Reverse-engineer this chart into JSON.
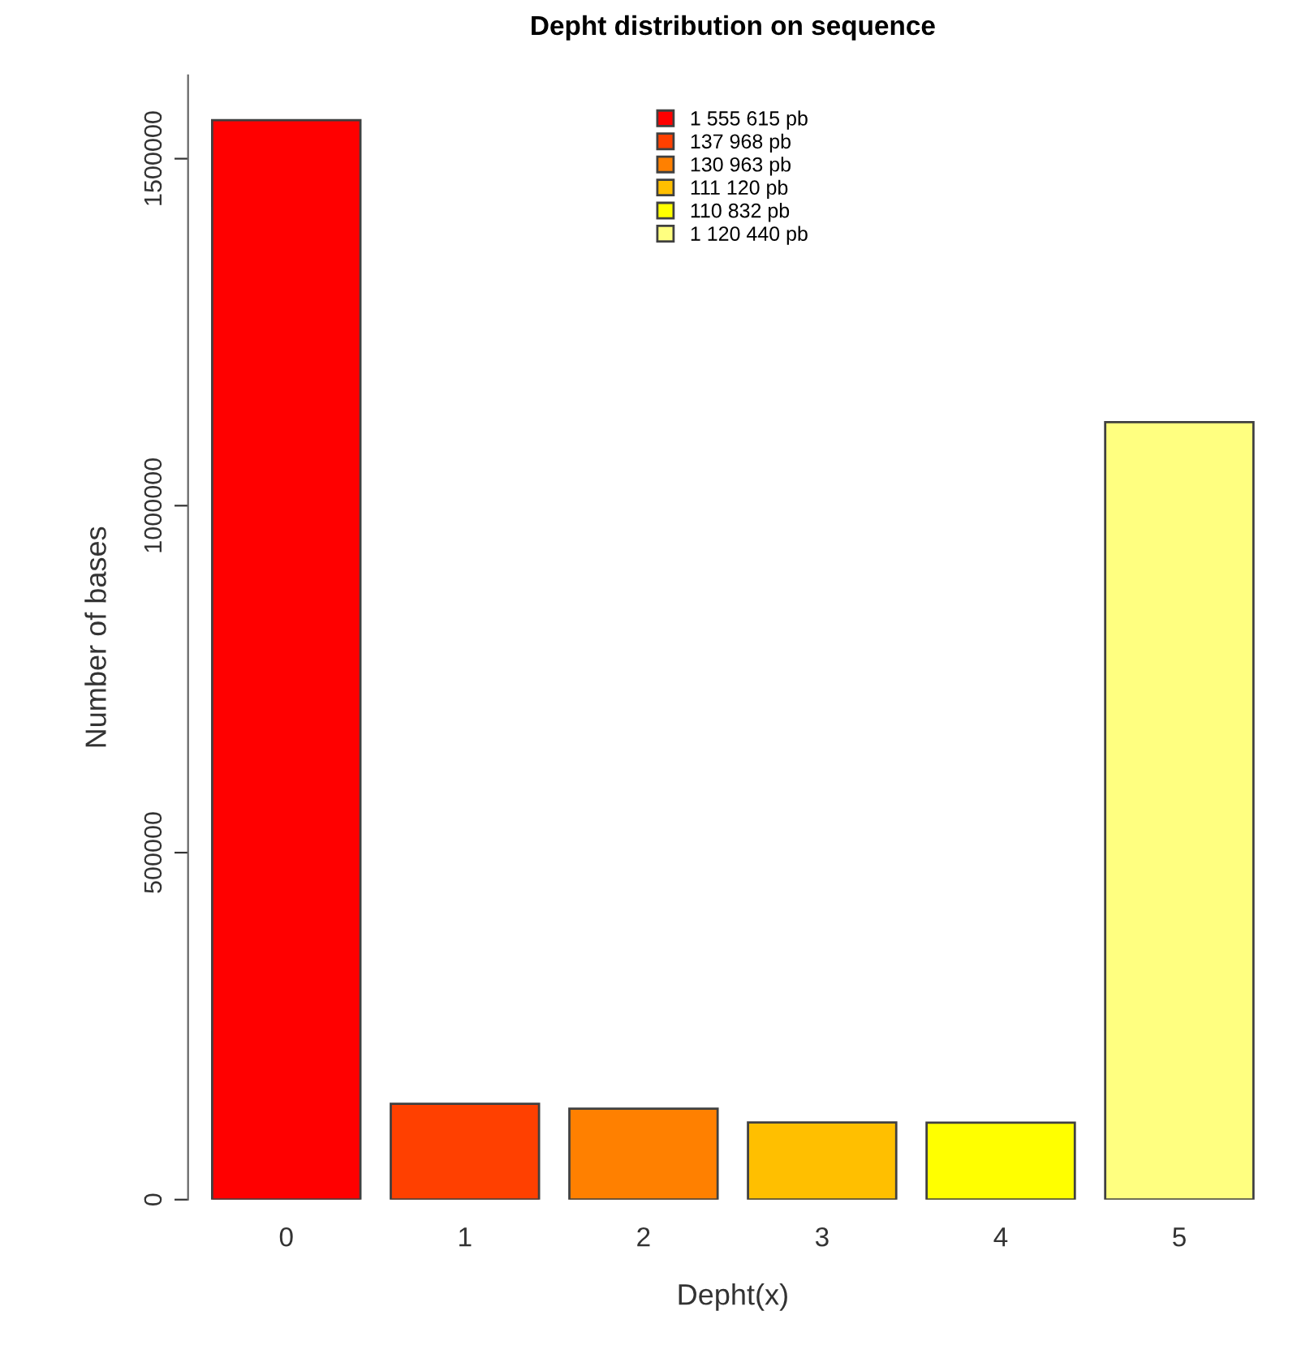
{
  "chart_data": {
    "type": "bar",
    "title": "Depht distribution on sequence",
    "xlabel": "Depht(x)",
    "ylabel": "Number of bases",
    "categories": [
      "0",
      "1",
      "2",
      "3",
      "4",
      "5"
    ],
    "series": [
      {
        "name": "1 555 615 pb",
        "color": "#ff0000",
        "values": [
          1555615,
          null,
          null,
          null,
          null,
          null
        ]
      },
      {
        "name": "137 968 pb",
        "color": "#ff4000",
        "values": [
          null,
          137968,
          null,
          null,
          null,
          null
        ]
      },
      {
        "name": "130 963 pb",
        "color": "#ff8000",
        "values": [
          null,
          null,
          130963,
          null,
          null,
          null
        ]
      },
      {
        "name": "111 120 pb",
        "color": "#ffbf00",
        "values": [
          null,
          null,
          null,
          111120,
          null,
          null
        ]
      },
      {
        "name": "110 832 pb",
        "color": "#ffff00",
        "values": [
          null,
          null,
          null,
          null,
          110832,
          null
        ]
      },
      {
        "name": "1 120 440 pb",
        "color": "#ffff80",
        "values": [
          null,
          null,
          null,
          null,
          null,
          1120440
        ]
      }
    ],
    "ylim": [
      0,
      1620000
    ],
    "yticks": [
      0,
      500000,
      1000000,
      1500000
    ],
    "grid": false,
    "legend": "top"
  }
}
